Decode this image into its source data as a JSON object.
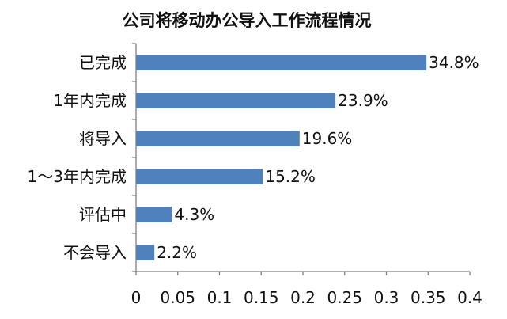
{
  "chart_data": {
    "type": "bar",
    "orientation": "horizontal",
    "title": "公司将移动办公导入工作流程情况",
    "categories": [
      "已完成",
      "1年内完成",
      "将导入",
      "1～3年内完成",
      "评估中",
      "不会导入"
    ],
    "values": [
      0.348,
      0.239,
      0.196,
      0.152,
      0.043,
      0.022
    ],
    "data_labels": [
      "34.8%",
      "23.9%",
      "19.6%",
      "15.2%",
      "4.3%",
      "2.2%"
    ],
    "x_ticks": [
      "0",
      "0.05",
      "0.1",
      "0.15",
      "0.2",
      "0.25",
      "0.3",
      "0.35",
      "0.4"
    ],
    "xlim": [
      0,
      0.4
    ],
    "grid": false,
    "legend": "none",
    "bar_color": "#4f81bd"
  }
}
